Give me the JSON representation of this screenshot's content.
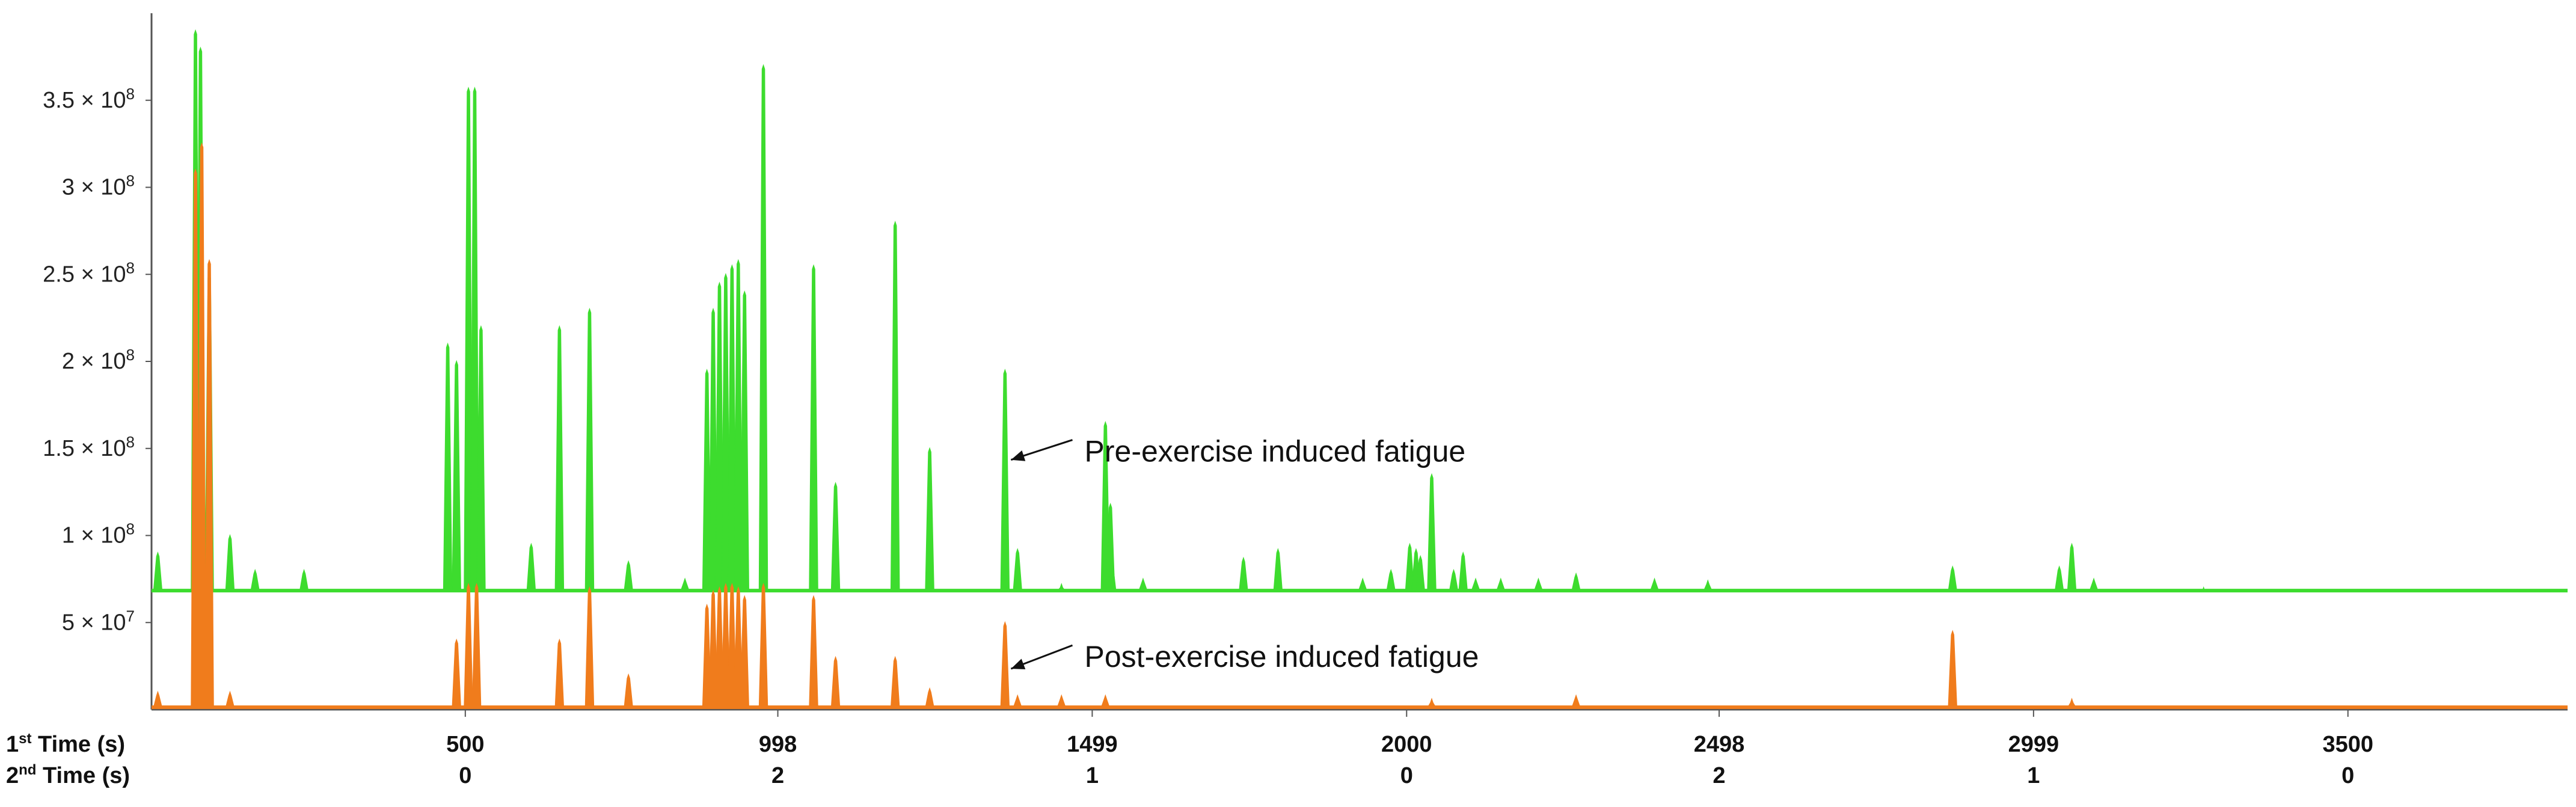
{
  "chart_data": {
    "type": "area",
    "title": "",
    "xlabel_rows": [
      {
        "ordinal": "1",
        "suffix": "st",
        "label": "Time (s)"
      },
      {
        "ordinal": "2",
        "suffix": "nd",
        "label": " Time (s)"
      }
    ],
    "xlim": [
      0,
      3850
    ],
    "ylim": [
      0,
      400000000
    ],
    "y_ticks": [
      {
        "value": 50000000,
        "mantissa": "5 × 10",
        "exp": "7"
      },
      {
        "value": 100000000,
        "mantissa": "1 × 10",
        "exp": "8"
      },
      {
        "value": 150000000,
        "mantissa": "1.5 × 10",
        "exp": "8"
      },
      {
        "value": 200000000,
        "mantissa": "2 × 10",
        "exp": "8"
      },
      {
        "value": 250000000,
        "mantissa": "2.5 × 10",
        "exp": "8"
      },
      {
        "value": 300000000,
        "mantissa": "3 × 10",
        "exp": "8"
      },
      {
        "value": 350000000,
        "mantissa": "3.5 × 10",
        "exp": "8"
      }
    ],
    "x_ticks": [
      {
        "value": 500,
        "first": "500",
        "second": "0"
      },
      {
        "value": 998,
        "first": "998",
        "second": "2"
      },
      {
        "value": 1499,
        "first": "1499",
        "second": "1"
      },
      {
        "value": 2000,
        "first": "2000",
        "second": "0"
      },
      {
        "value": 2498,
        "first": "2498",
        "second": "2"
      },
      {
        "value": 2999,
        "first": "2999",
        "second": "1"
      },
      {
        "value": 3500,
        "first": "3500",
        "second": "0"
      }
    ],
    "series": [
      {
        "name": "Pre-exercise induced fatigue",
        "color": "#3ddc2e",
        "baseline": 68000000,
        "peaks": [
          [
            10,
            90000000
          ],
          [
            70,
            390000000
          ],
          [
            78,
            380000000
          ],
          [
            92,
            250000000
          ],
          [
            125,
            100000000
          ],
          [
            165,
            80000000
          ],
          [
            243,
            80000000
          ],
          [
            472,
            210000000
          ],
          [
            486,
            200000000
          ],
          [
            505,
            357000000
          ],
          [
            515,
            357000000
          ],
          [
            525,
            220000000
          ],
          [
            605,
            95000000
          ],
          [
            650,
            220000000
          ],
          [
            698,
            230000000
          ],
          [
            760,
            85000000
          ],
          [
            850,
            75000000
          ],
          [
            885,
            195000000
          ],
          [
            895,
            230000000
          ],
          [
            905,
            245000000
          ],
          [
            915,
            250000000
          ],
          [
            925,
            255000000
          ],
          [
            935,
            258000000
          ],
          [
            945,
            240000000
          ],
          [
            975,
            370000000
          ],
          [
            1055,
            255000000
          ],
          [
            1090,
            130000000
          ],
          [
            1185,
            280000000
          ],
          [
            1240,
            150000000
          ],
          [
            1360,
            195000000
          ],
          [
            1380,
            92000000
          ],
          [
            1450,
            72000000
          ],
          [
            1520,
            165000000
          ],
          [
            1528,
            118000000
          ],
          [
            1530,
            85000000
          ],
          [
            1580,
            75000000
          ],
          [
            1740,
            87000000
          ],
          [
            1795,
            92000000
          ],
          [
            1930,
            75000000
          ],
          [
            1975,
            80000000
          ],
          [
            2005,
            95000000
          ],
          [
            2015,
            92000000
          ],
          [
            2022,
            88000000
          ],
          [
            2040,
            135000000
          ],
          [
            2075,
            80000000
          ],
          [
            2090,
            90000000
          ],
          [
            2110,
            75000000
          ],
          [
            2150,
            75000000
          ],
          [
            2210,
            75000000
          ],
          [
            2270,
            78000000
          ],
          [
            2395,
            75000000
          ],
          [
            2480,
            74000000
          ],
          [
            2870,
            82000000
          ],
          [
            3040,
            82000000
          ],
          [
            3060,
            95000000
          ],
          [
            3095,
            75000000
          ],
          [
            3270,
            70000000
          ]
        ]
      },
      {
        "name": "Post-exercise induced fatigue",
        "color": "#f07c1c",
        "baseline": 1000000,
        "peaks": [
          [
            10,
            10000000
          ],
          [
            70,
            310000000
          ],
          [
            80,
            325000000
          ],
          [
            92,
            258000000
          ],
          [
            125,
            10000000
          ],
          [
            486,
            40000000
          ],
          [
            505,
            72000000
          ],
          [
            518,
            72000000
          ],
          [
            650,
            40000000
          ],
          [
            698,
            70000000
          ],
          [
            760,
            20000000
          ],
          [
            885,
            60000000
          ],
          [
            895,
            68000000
          ],
          [
            905,
            70000000
          ],
          [
            915,
            72000000
          ],
          [
            925,
            72000000
          ],
          [
            935,
            70000000
          ],
          [
            945,
            65000000
          ],
          [
            975,
            72000000
          ],
          [
            1055,
            65000000
          ],
          [
            1090,
            30000000
          ],
          [
            1185,
            30000000
          ],
          [
            1240,
            12000000
          ],
          [
            1360,
            50000000
          ],
          [
            1380,
            8000000
          ],
          [
            1450,
            8000000
          ],
          [
            1520,
            8000000
          ],
          [
            2040,
            6000000
          ],
          [
            2270,
            8000000
          ],
          [
            2870,
            45000000
          ],
          [
            3060,
            6000000
          ]
        ]
      }
    ],
    "annotations": [
      {
        "text": "Pre-exercise induced fatigue",
        "x": 1410,
        "y": 148000000,
        "arrow_to": [
          1360,
          140000000
        ]
      },
      {
        "text": "Post-exercise induced fatigue",
        "x": 1410,
        "y": 30000000,
        "arrow_to": [
          1360,
          20000000
        ]
      }
    ]
  }
}
